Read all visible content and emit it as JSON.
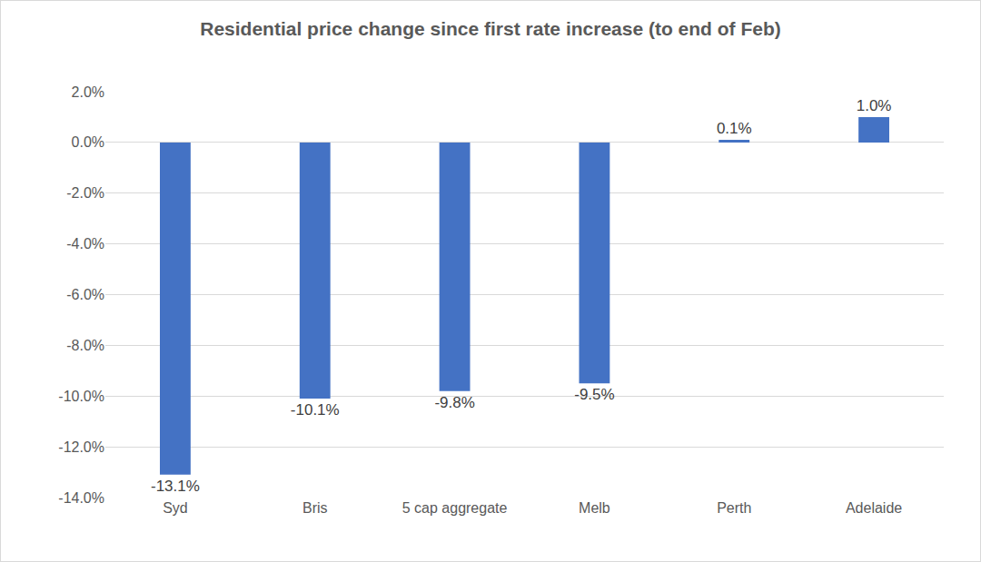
{
  "chart_data": {
    "type": "bar",
    "title": "Residential price change since first rate increase (to end of Feb)",
    "categories": [
      "Syd",
      "Bris",
      "5 cap aggregate",
      "Melb",
      "Perth",
      "Adelaide"
    ],
    "values": [
      -13.1,
      -10.1,
      -9.8,
      -9.5,
      0.1,
      1.0
    ],
    "value_labels": [
      "-13.1%",
      "-10.1%",
      "-9.8%",
      "-9.5%",
      "0.1%",
      "1.0%"
    ],
    "color": "#4472c4",
    "ylim": [
      -14,
      2
    ],
    "yticks": [
      {
        "value": -14,
        "label": "-14.0%"
      },
      {
        "value": -12,
        "label": "-12.0%"
      },
      {
        "value": -10,
        "label": "-10.0%"
      },
      {
        "value": -8,
        "label": "-8.0%"
      },
      {
        "value": -6,
        "label": "-6.0%"
      },
      {
        "value": -4,
        "label": "-4.0%"
      },
      {
        "value": -2,
        "label": "-2.0%"
      },
      {
        "value": 0,
        "label": "0.0%"
      },
      {
        "value": 2,
        "label": "2.0%"
      }
    ],
    "grid": true,
    "data_labels": true
  }
}
